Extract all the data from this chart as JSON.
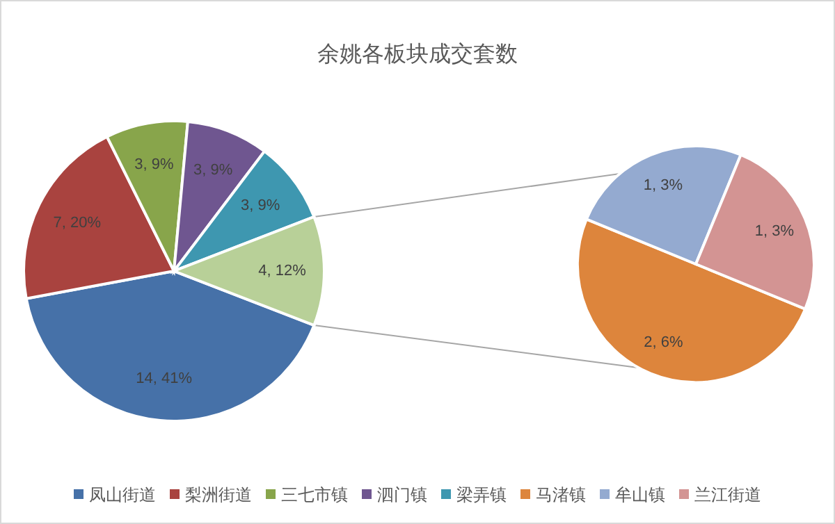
{
  "chart_data": [
    {
      "type": "pie",
      "title": "余姚各板块成交套数",
      "categories": [
        "凤山街道",
        "梨洲街道",
        "三七市镇",
        "泗门镇",
        "梁弄镇",
        null
      ],
      "values": [
        14,
        7,
        3,
        3,
        3,
        4
      ],
      "colors": [
        "#4671a8",
        "#a9433f",
        "#88a54b",
        "#6f5690",
        "#3e97b0",
        "#b8d098"
      ],
      "value_labels": [
        "14, 41%",
        "7, 20%",
        "3, 9%",
        "3, 9%",
        "3, 9%",
        "4, 12%"
      ],
      "legend": "bottom"
    },
    {
      "type": "pie",
      "categories": [
        "马渚镇",
        "牟山镇",
        "兰江街道"
      ],
      "values": [
        2,
        1,
        1
      ],
      "colors": [
        "#dd853c",
        "#94aad0",
        "#d39493"
      ],
      "value_labels": [
        "2, 6%",
        "1, 3%",
        "1, 3%"
      ],
      "legend": "bottom"
    }
  ]
}
